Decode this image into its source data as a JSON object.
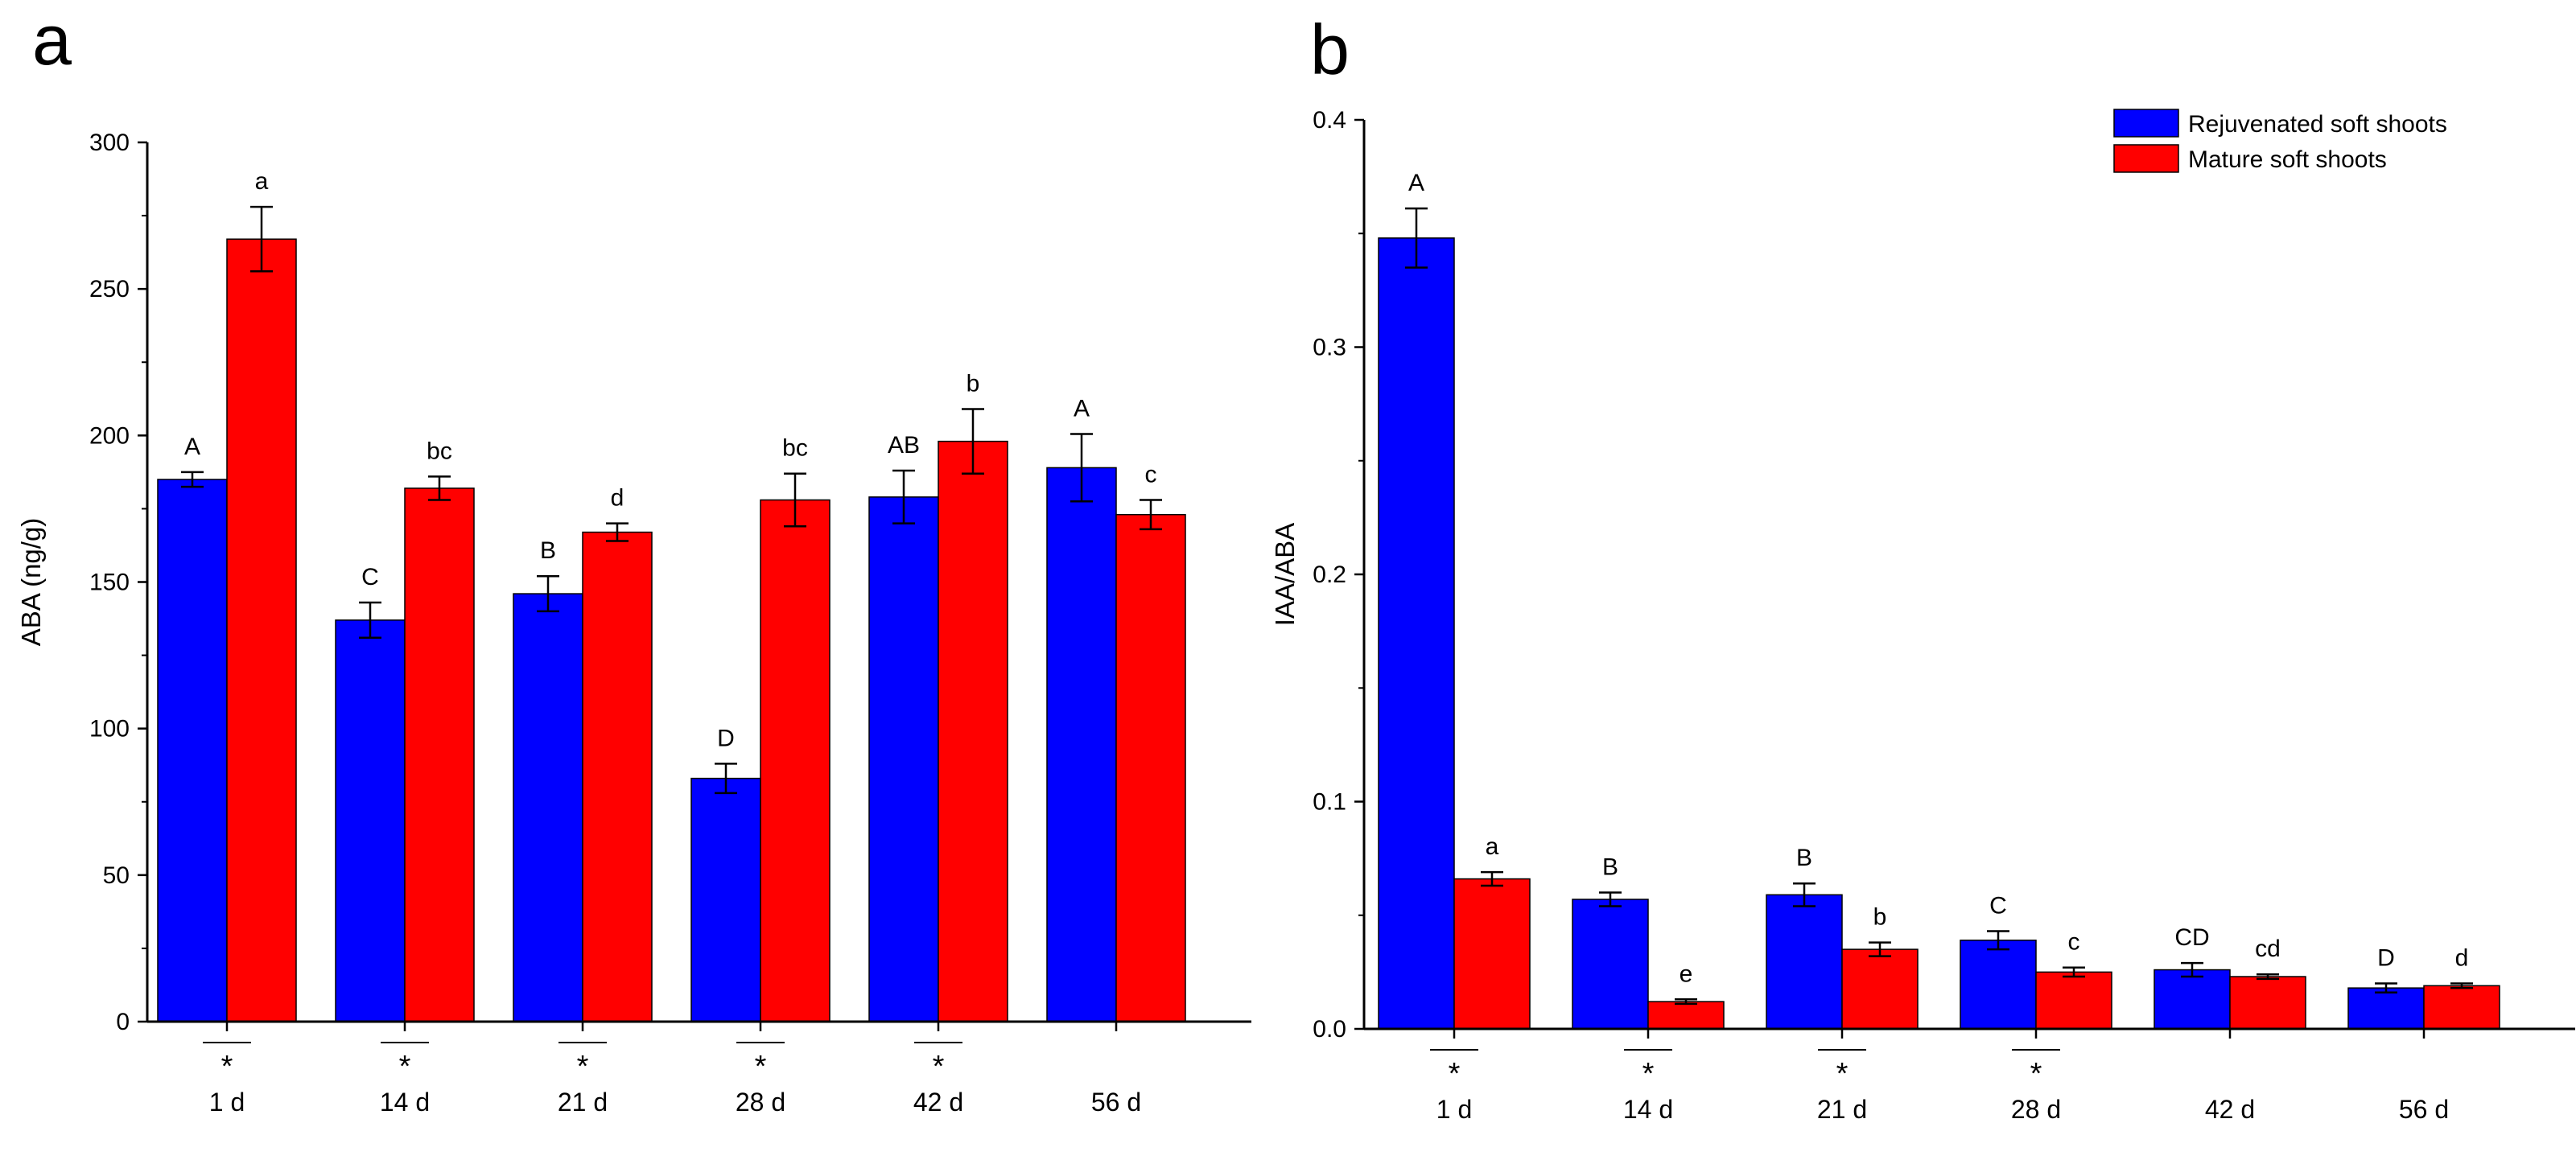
{
  "chart_data": [
    {
      "type": "bar",
      "panel": "a",
      "ylabel": "ABA (ng/g)",
      "xlabel": "",
      "ylim": [
        0,
        300
      ],
      "yticks": [
        0,
        50,
        100,
        150,
        200,
        250,
        300
      ],
      "ytick_labels": [
        "0",
        "50",
        "100",
        "150",
        "200",
        "250",
        "300"
      ],
      "categories": [
        "1 d",
        "14 d",
        "21 d",
        "28 d",
        "42 d",
        "56 d"
      ],
      "series": [
        {
          "name": "Rejuvenated soft shoots",
          "values": [
            185,
            137,
            146,
            83,
            179,
            189
          ],
          "errors": [
            2.5,
            6,
            6,
            5,
            9,
            11.5
          ],
          "labels": [
            "A",
            "C",
            "B",
            "D",
            "AB",
            "A"
          ]
        },
        {
          "name": "Mature soft shoots",
          "values": [
            267,
            182,
            167,
            178,
            198,
            173
          ],
          "errors": [
            11,
            4,
            3,
            9,
            11,
            5
          ],
          "labels": [
            "a",
            "bc",
            "d",
            "bc",
            "b",
            "c"
          ]
        }
      ],
      "significance": [
        "*",
        "*",
        "*",
        "*",
        "*",
        ""
      ]
    },
    {
      "type": "bar",
      "panel": "b",
      "ylabel": "IAA/ABA",
      "xlabel": "",
      "ylim": [
        0,
        0.4
      ],
      "yticks": [
        0,
        0.1,
        0.2,
        0.3,
        0.4
      ],
      "ytick_labels": [
        "0.0",
        "0.1",
        "0.2",
        "0.3",
        "0.4"
      ],
      "categories": [
        "1 d",
        "14 d",
        "21 d",
        "28 d",
        "42 d",
        "56 d"
      ],
      "series": [
        {
          "name": "Rejuvenated soft shoots",
          "values": [
            0.348,
            0.057,
            0.059,
            0.039,
            0.026,
            0.018
          ],
          "errors": [
            0.013,
            0.003,
            0.005,
            0.004,
            0.003,
            0.002
          ],
          "labels": [
            "A",
            "B",
            "B",
            "C",
            "CD",
            "D"
          ]
        },
        {
          "name": "Mature soft shoots",
          "values": [
            0.066,
            0.012,
            0.035,
            0.025,
            0.023,
            0.019
          ],
          "errors": [
            0.003,
            0.001,
            0.003,
            0.002,
            0.001,
            0.001
          ],
          "labels": [
            "a",
            "e",
            "b",
            "c",
            "cd",
            "d"
          ]
        }
      ],
      "significance": [
        "*",
        "*",
        "*",
        "*",
        "",
        ""
      ],
      "legend": {
        "placement": "top-right",
        "entries": [
          "Rejuvenated soft shoots",
          "Mature soft shoots"
        ]
      }
    }
  ],
  "colors": {
    "series_0": "#0000ff",
    "series_1": "#ff0000",
    "axis": "#000000"
  }
}
